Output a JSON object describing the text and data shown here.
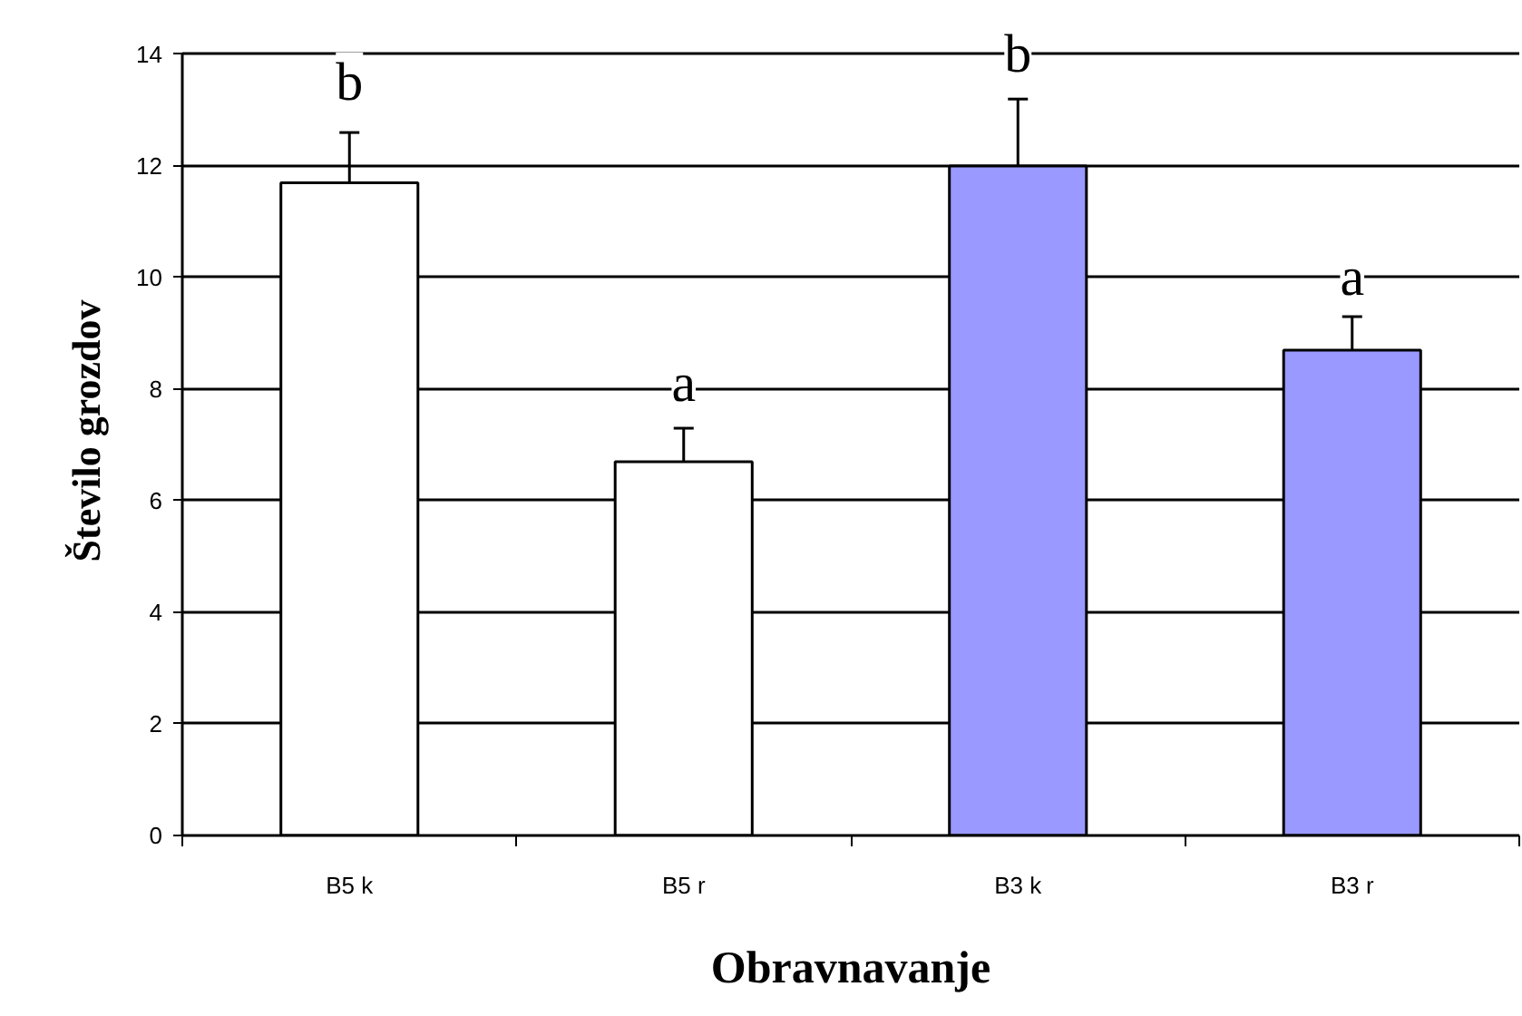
{
  "chart_data": {
    "type": "bar",
    "xlabel": "Obravnavanje",
    "ylabel": "Število grozdov",
    "categories": [
      "B5 k",
      "B5 r",
      "B3 k",
      "B3 r"
    ],
    "values": [
      11.7,
      6.7,
      12.0,
      8.7
    ],
    "errors": [
      0.9,
      0.6,
      1.2,
      0.6
    ],
    "colors": [
      "#ffffff",
      "#ffffff",
      "#9999ff",
      "#9999ff"
    ],
    "ylim": [
      0,
      14
    ],
    "yticks": [
      0,
      2,
      4,
      6,
      8,
      10,
      12,
      14
    ],
    "grid": "y",
    "annotations": [
      {
        "text": "b",
        "x": "B5 k",
        "y": 13.5
      },
      {
        "text": "a",
        "x": "B5 r",
        "y": 8.1
      },
      {
        "text": "b",
        "x": "B3 k",
        "y": 14.0
      },
      {
        "text": "a",
        "x": "B3 r",
        "y": 10.0
      }
    ]
  }
}
